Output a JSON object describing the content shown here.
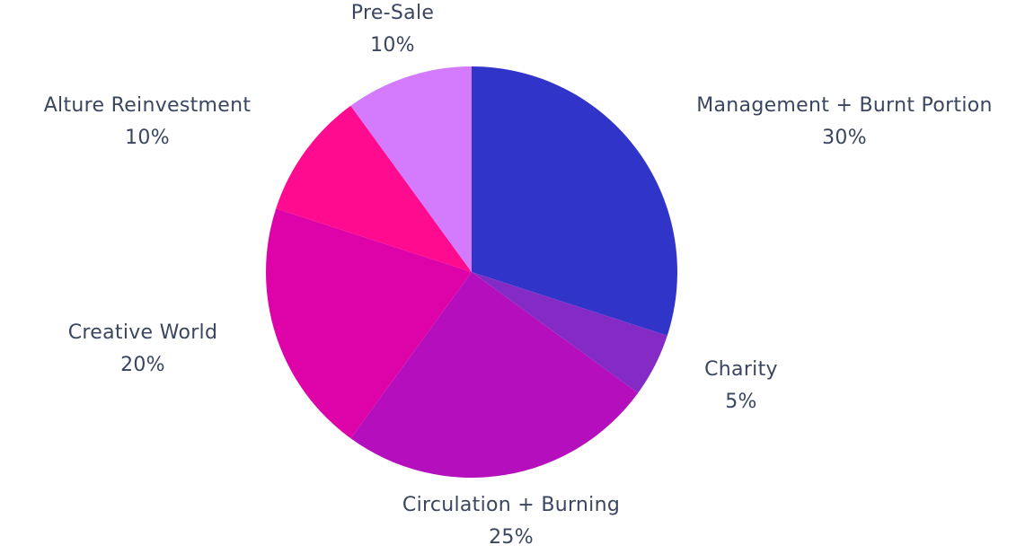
{
  "chart_data": {
    "type": "pie",
    "start_angle_deg": 0,
    "direction": "clockwise",
    "slices": [
      {
        "label": "Management + Burnt Portion",
        "value": 30,
        "display": "30%",
        "color": "#3134c8"
      },
      {
        "label": "Charity",
        "value": 5,
        "display": "5%",
        "color": "#842bc6"
      },
      {
        "label": "Circulation + Burning",
        "value": 25,
        "display": "25%",
        "color": "#b50fbd"
      },
      {
        "label": "Creative World",
        "value": 20,
        "display": "20%",
        "color": "#dd03a9"
      },
      {
        "label": "Alture Reinvestment",
        "value": 10,
        "display": "10%",
        "color": "#ff0b8f"
      },
      {
        "label": "Pre-Sale",
        "value": 10,
        "display": "10%",
        "color": "#d47bfd"
      }
    ]
  }
}
